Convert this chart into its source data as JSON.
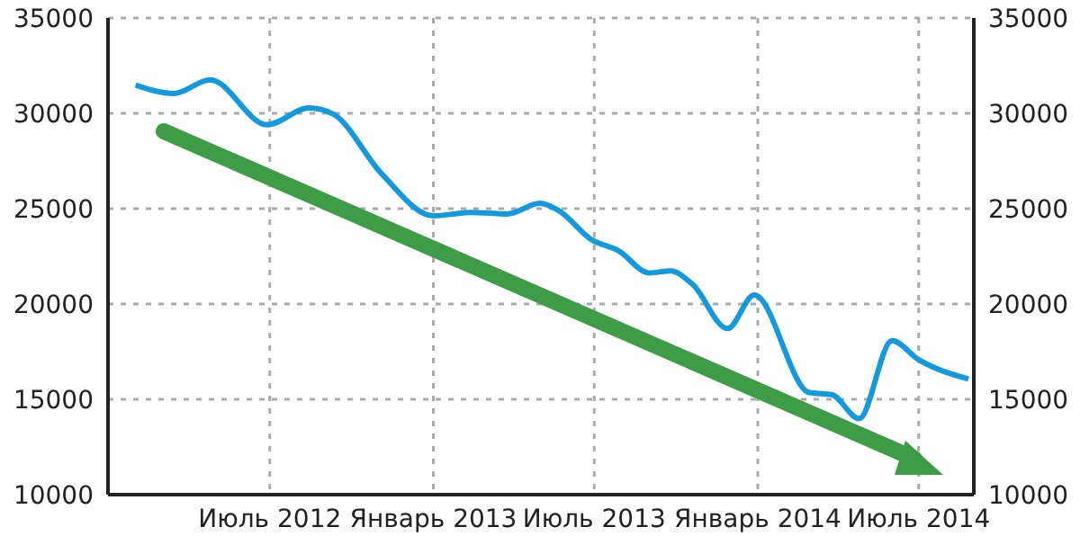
{
  "chart_data": {
    "type": "line",
    "x": [
      "2012-02-01",
      "2012-03-15",
      "2012-04-25",
      "2012-06-28",
      "2012-08-14",
      "2012-09-10",
      "2012-11-04",
      "2013-01-01",
      "2013-02-12",
      "2013-03-25",
      "2013-05-01",
      "2013-05-22",
      "2013-06-28",
      "2013-07-28",
      "2013-09-01",
      "2013-09-25",
      "2013-10-20",
      "2013-11-28",
      "2013-12-28",
      "2014-02-28",
      "2014-03-25",
      "2014-04-25",
      "2014-06-01",
      "2014-07-01",
      "2014-08-26"
    ],
    "series": [
      {
        "color": "#1499dc",
        "values": [
          31480,
          31040,
          31760,
          29400,
          30280,
          29970,
          26820,
          24620,
          24800,
          24720,
          25280,
          24900,
          23370,
          22800,
          21630,
          21730,
          21010,
          18710,
          20470,
          15350,
          15250,
          13990,
          18080,
          17080,
          16070
        ]
      }
    ],
    "xlim": [
      "2012-01-01",
      "2014-09-01"
    ],
    "xticks": [
      {
        "value": "2012-07-01",
        "label": "Июль 2012"
      },
      {
        "value": "2013-01-01",
        "label": "Январь 2013"
      },
      {
        "value": "2013-07-01",
        "label": "Июль 2013"
      },
      {
        "value": "2014-01-01",
        "label": "Январь 2014"
      },
      {
        "value": "2014-07-01",
        "label": "Июль 2014"
      }
    ],
    "ylim": [
      10000,
      35000
    ],
    "yticks": [
      10000,
      15000,
      20000,
      25000,
      30000,
      35000
    ],
    "y2lim": [
      10000,
      35000
    ],
    "y2ticks": [
      10000,
      15000,
      20000,
      25000,
      30000,
      35000
    ],
    "grid": true,
    "marker": "none",
    "line_style": "solid"
  }
}
